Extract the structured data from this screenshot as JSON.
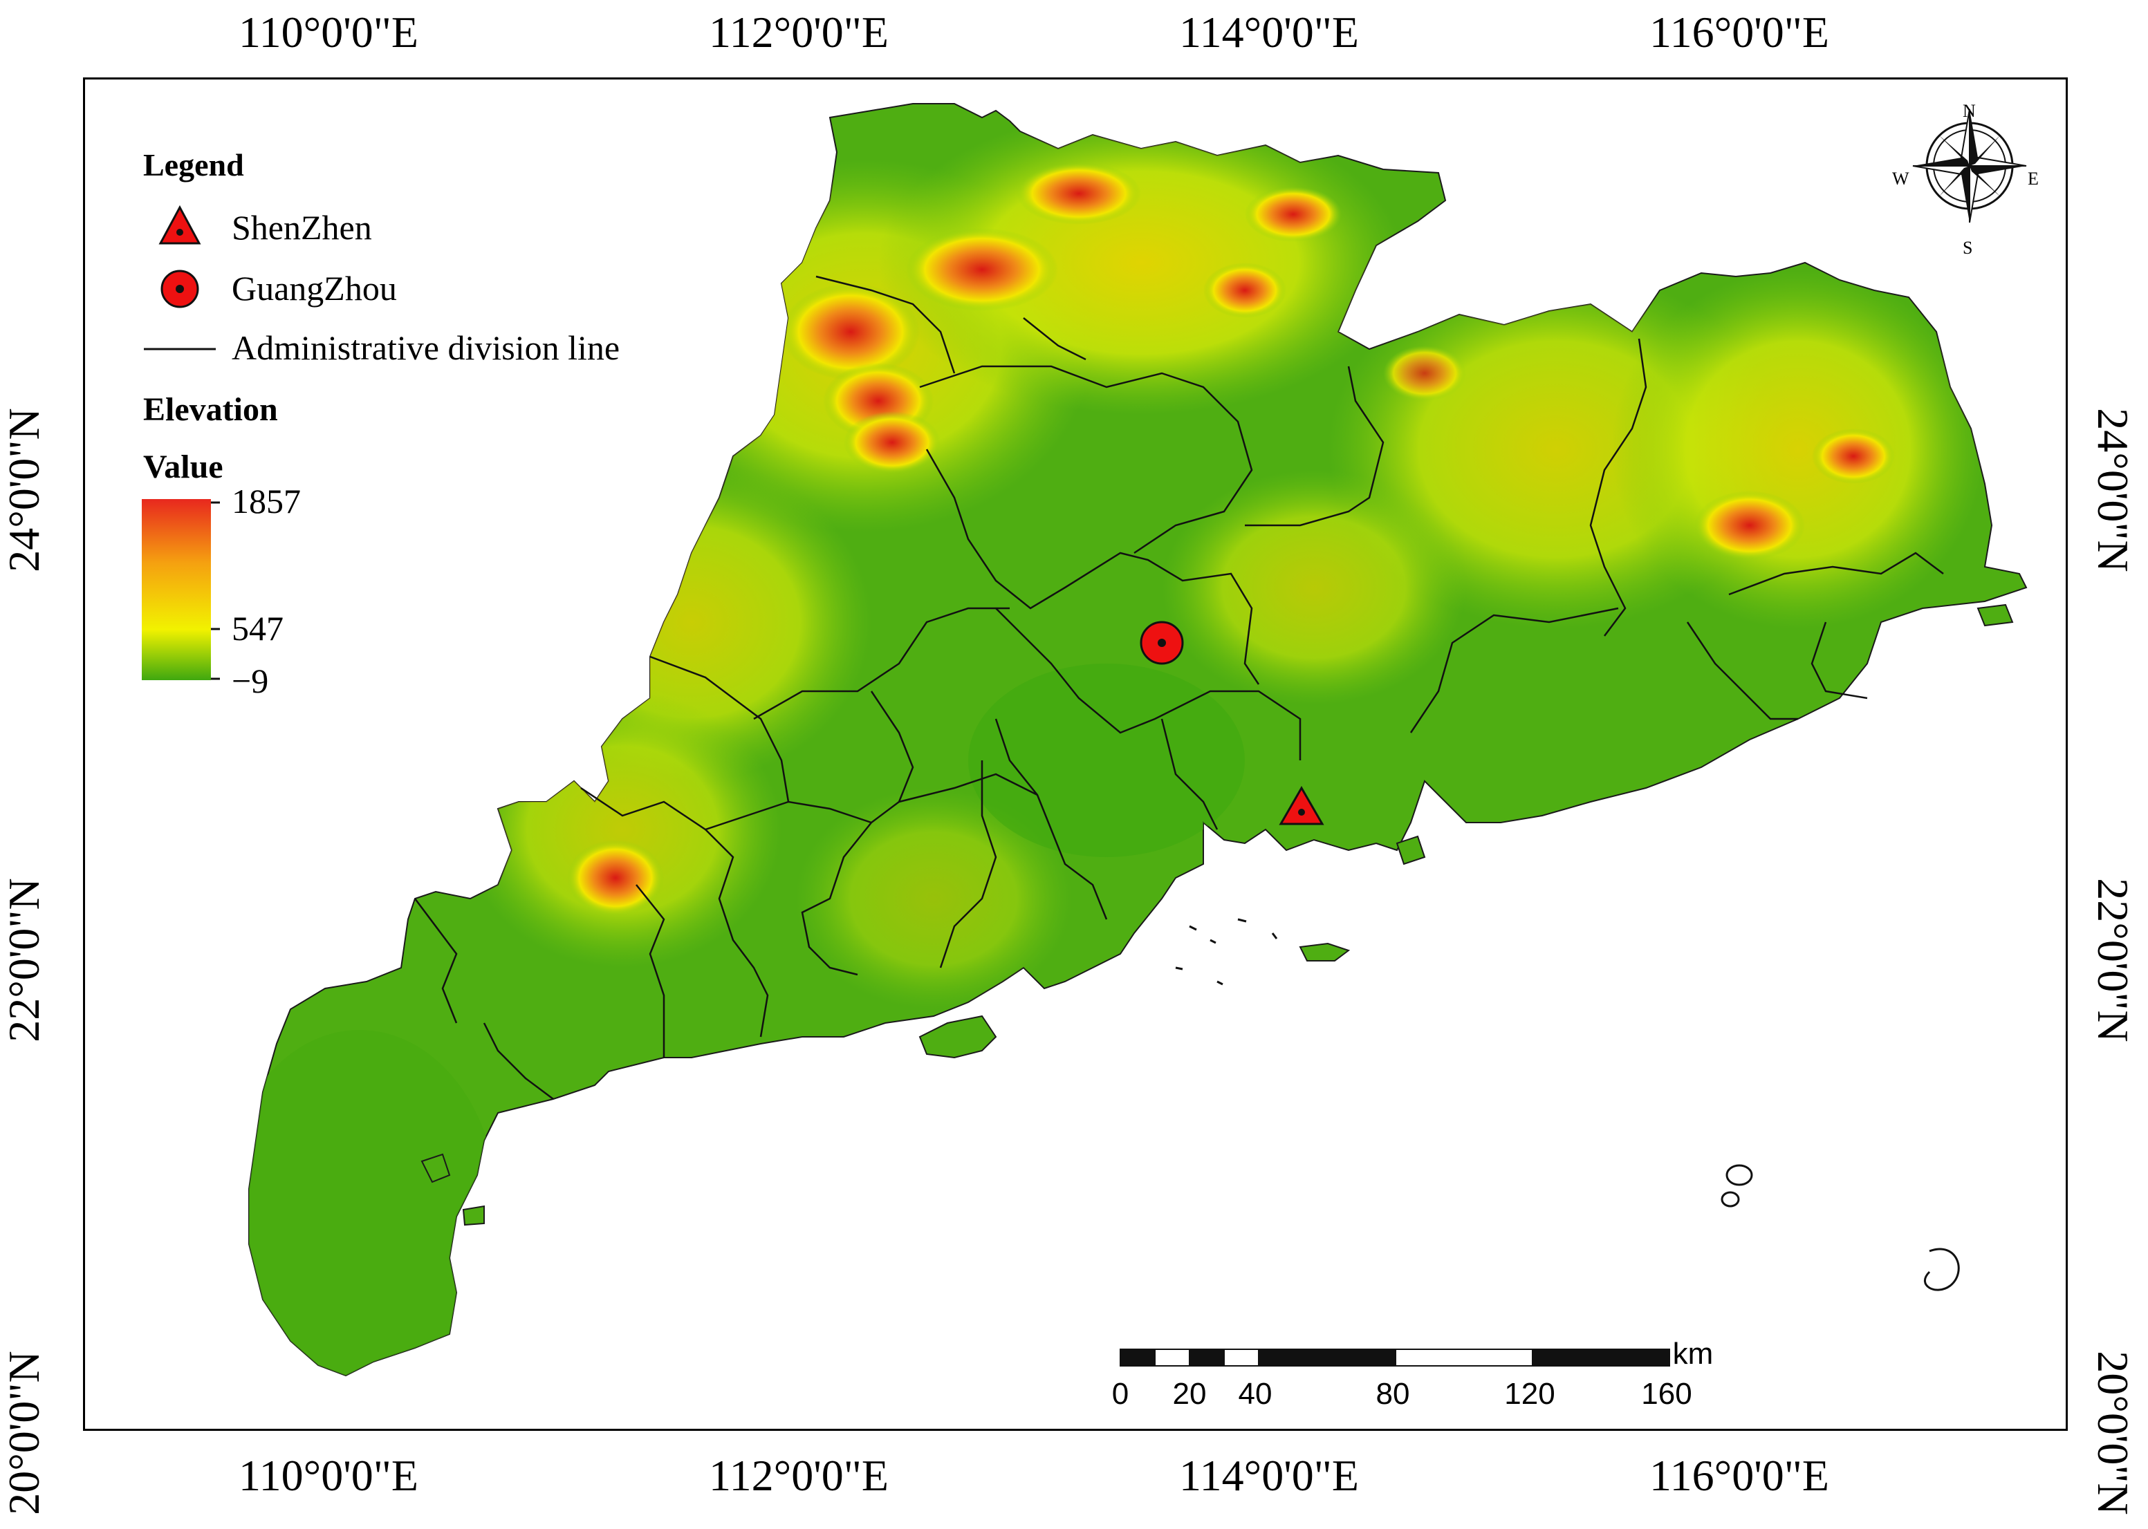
{
  "axes": {
    "longitude_labels": [
      "110°0'0\"E",
      "112°0'0\"E",
      "114°0'0\"E",
      "116°0'0\"E"
    ],
    "latitude_labels": [
      "24°0'0\"N",
      "22°0'0\"N",
      "20°0'0\"N"
    ]
  },
  "legend": {
    "title": "Legend",
    "items": [
      {
        "label": "ShenZhen",
        "symbol": "triangle"
      },
      {
        "label": "GuangZhou",
        "symbol": "circle"
      },
      {
        "label": "Administrative division line",
        "symbol": "line"
      }
    ],
    "elevation_heading": "Elevation",
    "value_heading": "Value",
    "ramp": {
      "max": "1857",
      "mid": "547",
      "min": "−9"
    }
  },
  "colors": {
    "low": "#3fa80f",
    "mid": "#f2f200",
    "high": "#e8281e",
    "marker": "#ee1111"
  },
  "compass": {
    "n": "N",
    "s": "S",
    "e": "E",
    "w": "W"
  },
  "scale_bar": {
    "unit": "km",
    "ticks": [
      "0",
      "20",
      "40",
      "80",
      "120",
      "160"
    ]
  }
}
